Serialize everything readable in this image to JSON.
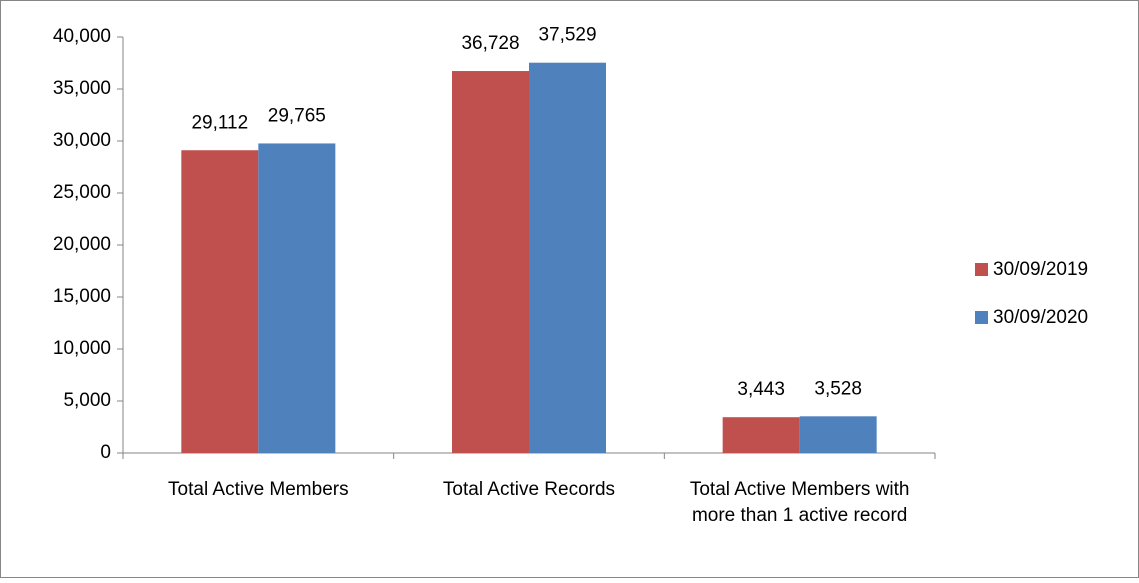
{
  "chart_data": {
    "type": "bar",
    "categories": [
      "Total Active Members",
      "Total Active Records",
      "Total Active Members with more than 1 active record"
    ],
    "series": [
      {
        "name": "30/09/2019",
        "color": "#c0504d",
        "values": [
          29112,
          36728,
          3443
        ],
        "value_labels": [
          "29,112",
          "36,728",
          "3,443"
        ]
      },
      {
        "name": "30/09/2020",
        "color": "#4f81bd",
        "values": [
          29765,
          37529,
          3528
        ],
        "value_labels": [
          "29,765",
          "37,529",
          "3,528"
        ]
      }
    ],
    "ylim": [
      0,
      40000
    ],
    "yticks": [
      0,
      {
        "value": 5000,
        "label": "5,000"
      },
      {
        "value": 10000,
        "label": "10,000"
      },
      {
        "value": 15000,
        "label": "15,000"
      },
      {
        "value": 20000,
        "label": "20,000"
      },
      {
        "value": 25000,
        "label": "25,000"
      },
      {
        "value": 30000,
        "label": "30,000"
      },
      {
        "value": 35000,
        "label": "35,000"
      },
      {
        "value": 40000,
        "label": "40,000"
      }
    ],
    "grid": false,
    "legend": "right"
  }
}
